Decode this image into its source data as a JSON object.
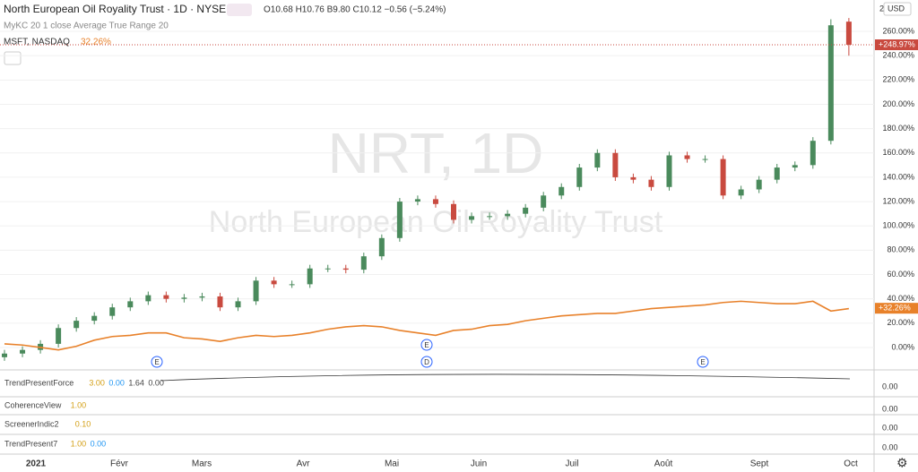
{
  "chart_data": {
    "type": "candlestick",
    "title": "North European Oil Royality Trust · 1D · NYSE",
    "ohlc_text": "O10.68 H10.76 B9.80 C10.12 −0.56 (−5.24%)",
    "indicator_label": "MyKC 20 1 close Average True Range 20",
    "compare_label": "MSFT, NASDAQ",
    "compare_value": "32.26%",
    "watermark_symbol": "NRT, 1D",
    "watermark_name": "North European Oil Royality Trust",
    "currency": "USD",
    "price_label": "+248.97%",
    "compare_price_label": "+32.26%",
    "up_color": "#4a8a5c",
    "down_color": "#c94a3f",
    "open": [
      -8,
      -5,
      -2,
      3,
      16,
      22,
      26,
      33,
      38,
      43,
      40,
      41,
      42,
      33,
      38,
      55,
      52,
      52,
      65,
      65,
      64,
      75,
      90,
      120,
      122,
      118,
      105,
      108,
      108,
      110,
      115,
      125,
      132,
      148,
      160,
      140,
      138,
      132,
      158,
      155,
      155,
      125,
      130,
      138,
      148,
      150,
      170,
      268
    ],
    "high": [
      -2,
      1,
      6,
      19,
      25,
      29,
      36,
      41,
      46,
      46,
      44,
      45,
      45,
      41,
      58,
      58,
      55,
      68,
      68,
      68,
      78,
      93,
      123,
      125,
      125,
      121,
      111,
      111,
      113,
      118,
      128,
      135,
      151,
      163,
      163,
      143,
      141,
      161,
      161,
      158,
      158,
      133,
      141,
      151,
      153,
      173,
      270,
      271
    ],
    "low": [
      -11,
      -8,
      -5,
      0,
      13,
      19,
      23,
      30,
      35,
      37,
      37,
      38,
      30,
      30,
      35,
      49,
      49,
      49,
      62,
      61,
      61,
      72,
      87,
      117,
      115,
      102,
      102,
      105,
      105,
      107,
      112,
      122,
      129,
      145,
      137,
      135,
      129,
      129,
      152,
      152,
      122,
      122,
      127,
      135,
      145,
      147,
      167,
      240
    ],
    "close": [
      -5,
      -2,
      3,
      16,
      22,
      26,
      33,
      38,
      43,
      40,
      41,
      42,
      33,
      38,
      55,
      52,
      52,
      65,
      65,
      64,
      75,
      90,
      120,
      122,
      118,
      105,
      108,
      108,
      110,
      115,
      125,
      132,
      148,
      160,
      140,
      138,
      132,
      158,
      155,
      155,
      125,
      130,
      138,
      148,
      150,
      170,
      265,
      249
    ],
    "series": [
      {
        "name": "MSFT",
        "color": "#e8812a",
        "values": [
          3,
          2,
          0,
          -2,
          1,
          6,
          9,
          10,
          12,
          12,
          8,
          7,
          5,
          8,
          10,
          9,
          10,
          12,
          15,
          17,
          18,
          17,
          14,
          12,
          10,
          14,
          15,
          18,
          19,
          22,
          24,
          26,
          27,
          28,
          28,
          30,
          32,
          33,
          34,
          35,
          37,
          38,
          37,
          36,
          36,
          38,
          30,
          32
        ]
      }
    ],
    "ylim": [
      -17.7,
      285.8
    ],
    "yticks": [
      {
        "value": 0,
        "label": "0.00%"
      },
      {
        "value": 20,
        "label": "20.00%"
      },
      {
        "value": 40,
        "label": "40.00%"
      },
      {
        "value": 60,
        "label": "60.00%"
      },
      {
        "value": 80,
        "label": "80.00%"
      },
      {
        "value": 100,
        "label": "100.00%"
      },
      {
        "value": 120,
        "label": "120.00%"
      },
      {
        "value": 140,
        "label": "140.00%"
      },
      {
        "value": 160,
        "label": "160.00%"
      },
      {
        "value": 180,
        "label": "180.00%"
      },
      {
        "value": 200,
        "label": "200.00%"
      },
      {
        "value": 220,
        "label": "220.00%"
      },
      {
        "value": 240,
        "label": "240.00%"
      },
      {
        "value": 260,
        "label": "260.00%"
      }
    ],
    "price_value": 248.97,
    "compare_price_value": 32.26,
    "x_labels": [
      "2021",
      "Févr",
      "Mars",
      "Avr",
      "Mai",
      "Juin",
      "Juil",
      "Août",
      "Sept",
      "Oct"
    ],
    "events": [
      "E",
      "D",
      "E",
      "E"
    ],
    "grid": true
  },
  "panes": [
    {
      "name": "TrendPresentForce",
      "values": [
        "3.00",
        "0.00",
        "1.64",
        "0.00"
      ],
      "axis": "0.00"
    },
    {
      "name": "CoherenceView",
      "values": [
        "1.00"
      ],
      "axis": "0.00"
    },
    {
      "name": "ScreenerIndic2",
      "values": [
        "0.10"
      ],
      "axis": "0.00"
    },
    {
      "name": "TrendPresent7",
      "values": [
        "1.00",
        "0.00"
      ],
      "axis": "0.00"
    }
  ],
  "ui": {
    "axis_corner": "2"
  }
}
